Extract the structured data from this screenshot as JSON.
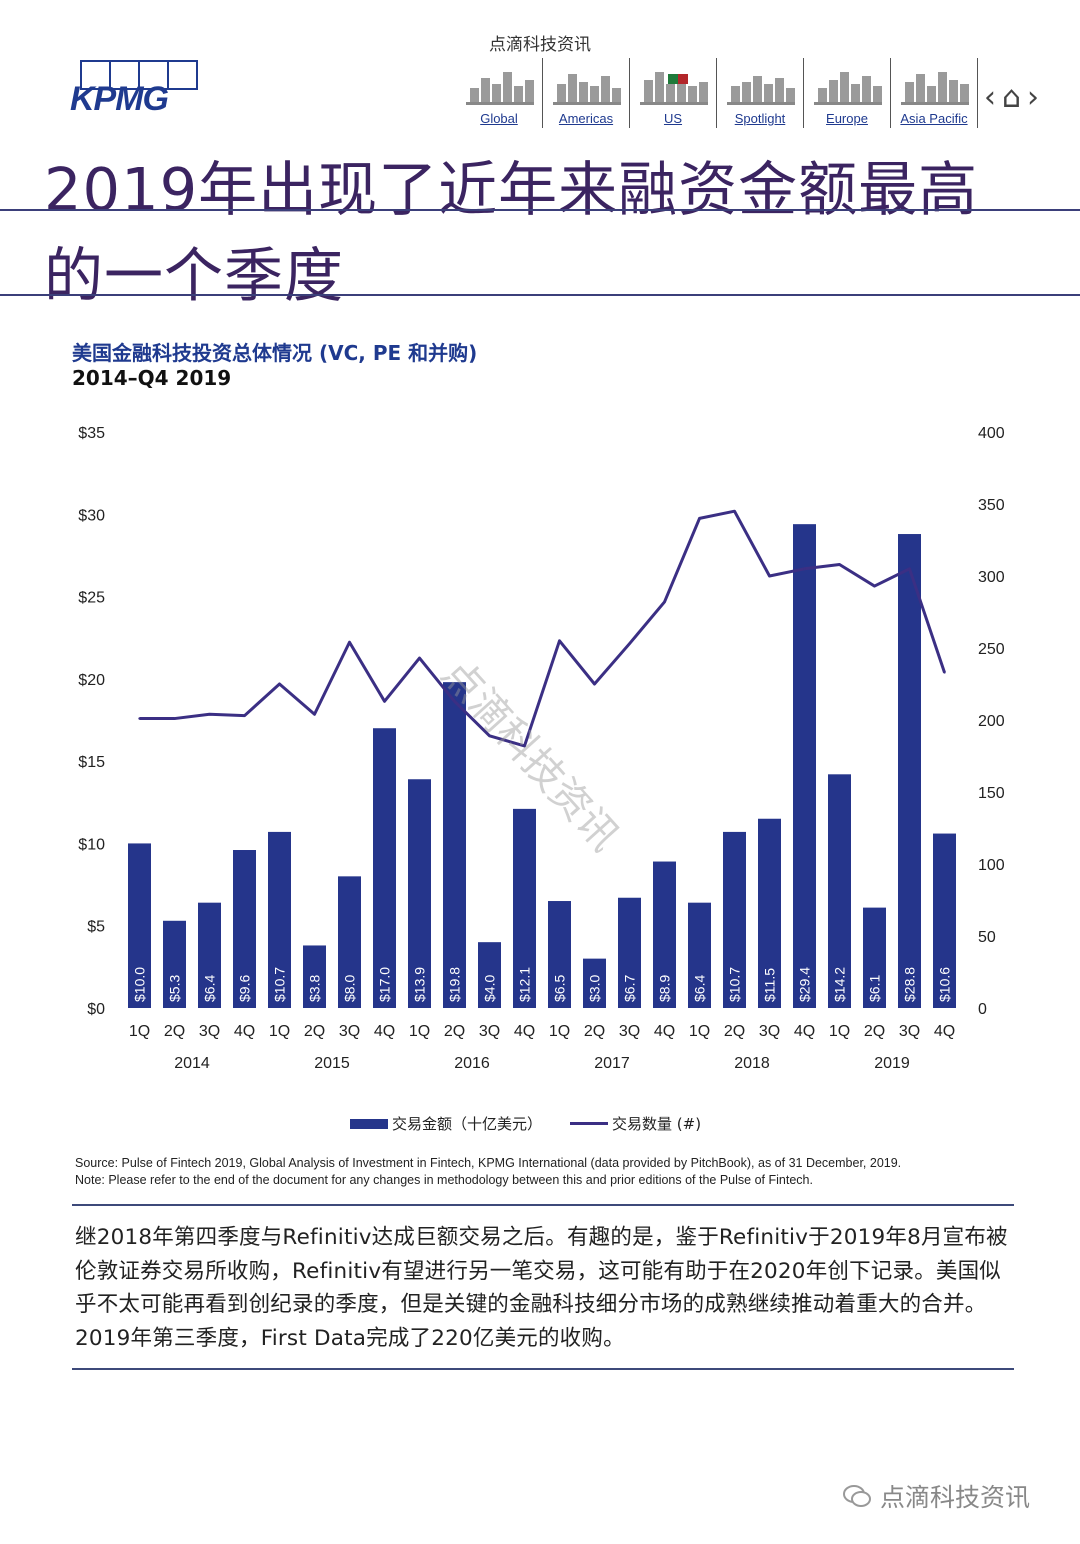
{
  "header": {
    "caption": "点滴科技资讯",
    "logo_text": "KPMG",
    "nav": [
      {
        "label": "Global",
        "icon": "global-skyline-icon"
      },
      {
        "label": "Americas",
        "icon": "americas-skyline-icon"
      },
      {
        "label": "US",
        "icon": "us-skyline-icon"
      },
      {
        "label": "Spotlight",
        "icon": "spotlight-icon"
      },
      {
        "label": "Europe",
        "icon": "europe-skyline-icon"
      },
      {
        "label": "Asia Pacific",
        "icon": "asia-pacific-skyline-icon"
      }
    ],
    "prev_glyph": "‹",
    "home_glyph": "⌂",
    "next_glyph": "›"
  },
  "page_title": {
    "line1": "2019年出现了近年来融资金额最高",
    "line2": "的一个季度"
  },
  "colors": {
    "bar": "#25358b",
    "line": "#3b2f84",
    "title": "#3b2461"
  },
  "chart_data": {
    "type": "bar",
    "title": "美国金融科技投资总体情况 (VC, PE 和并购)",
    "subtitle": "2014–Q4 2019",
    "categories": [
      "1Q",
      "2Q",
      "3Q",
      "4Q",
      "1Q",
      "2Q",
      "3Q",
      "4Q",
      "1Q",
      "2Q",
      "3Q",
      "4Q",
      "1Q",
      "2Q",
      "3Q",
      "4Q",
      "1Q",
      "2Q",
      "3Q",
      "4Q",
      "1Q",
      "2Q",
      "3Q",
      "4Q"
    ],
    "years": [
      "2014",
      "2015",
      "2016",
      "2017",
      "2018",
      "2019"
    ],
    "series": [
      {
        "name": "交易金额（十亿美元）",
        "axis": "left",
        "kind": "bar",
        "values": [
          10.0,
          5.3,
          6.4,
          9.6,
          10.7,
          3.8,
          8.0,
          17.0,
          13.9,
          19.8,
          4.0,
          12.1,
          6.5,
          3.0,
          6.7,
          8.9,
          6.4,
          10.7,
          11.5,
          29.4,
          14.2,
          6.1,
          28.8,
          10.6
        ],
        "labels": [
          "$10.0",
          "$5.3",
          "$6.4",
          "$9.6",
          "$10.7",
          "$3.8",
          "$8.0",
          "$17.0",
          "$13.9",
          "$19.8",
          "$4.0",
          "$12.1",
          "$6.5",
          "$3.0",
          "$6.7",
          "$8.9",
          "$6.4",
          "$10.7",
          "$11.5",
          "$29.4",
          "$14.2",
          "$6.1",
          "$28.8",
          "$10.6"
        ]
      },
      {
        "name": "交易数量 (#)",
        "axis": "right",
        "kind": "line",
        "values": [
          201,
          201,
          204,
          203,
          225,
          204,
          254,
          213,
          243,
          213,
          189,
          182,
          255,
          225,
          253,
          282,
          340,
          345,
          300,
          305,
          308,
          293,
          305,
          233
        ]
      }
    ],
    "y_left": {
      "min": 0,
      "max": 35,
      "ticks": [
        0,
        5,
        10,
        15,
        20,
        25,
        30,
        35
      ],
      "tick_labels": [
        "$0",
        "$5",
        "$10",
        "$15",
        "$20",
        "$25",
        "$30",
        "$35"
      ]
    },
    "y_right": {
      "min": 0,
      "max": 400,
      "ticks": [
        0,
        50,
        100,
        150,
        200,
        250,
        300,
        350,
        400
      ],
      "tick_labels": [
        "0",
        "50",
        "100",
        "150",
        "200",
        "250",
        "300",
        "350",
        "400"
      ]
    },
    "watermark": "点滴科技资讯",
    "legend_position": "bottom"
  },
  "source_note": "Source: Pulse of Fintech 2019, Global Analysis of Investment in Fintech, KPMG International (data provided by PitchBook), as of 31 December, 2019.",
  "methodology_note": "Note: Please refer to the end of the document for any changes in methodology between this and prior editions of the Pulse of Fintech.",
  "body_text": "继2018年第四季度与Refinitiv达成巨额交易之后。有趣的是，鉴于Refinitiv于2019年8月宣布被伦敦证券交易所收购，Refinitiv有望进行另一笔交易，这可能有助于在2020年创下记录。美国似乎不太可能再看到创纪录的季度，但是关键的金融科技细分市场的成熟继续推动着重大的合并。 2019年第三季度，First Data完成了220亿美元的收购。",
  "footer_watermark": "点滴科技资讯"
}
